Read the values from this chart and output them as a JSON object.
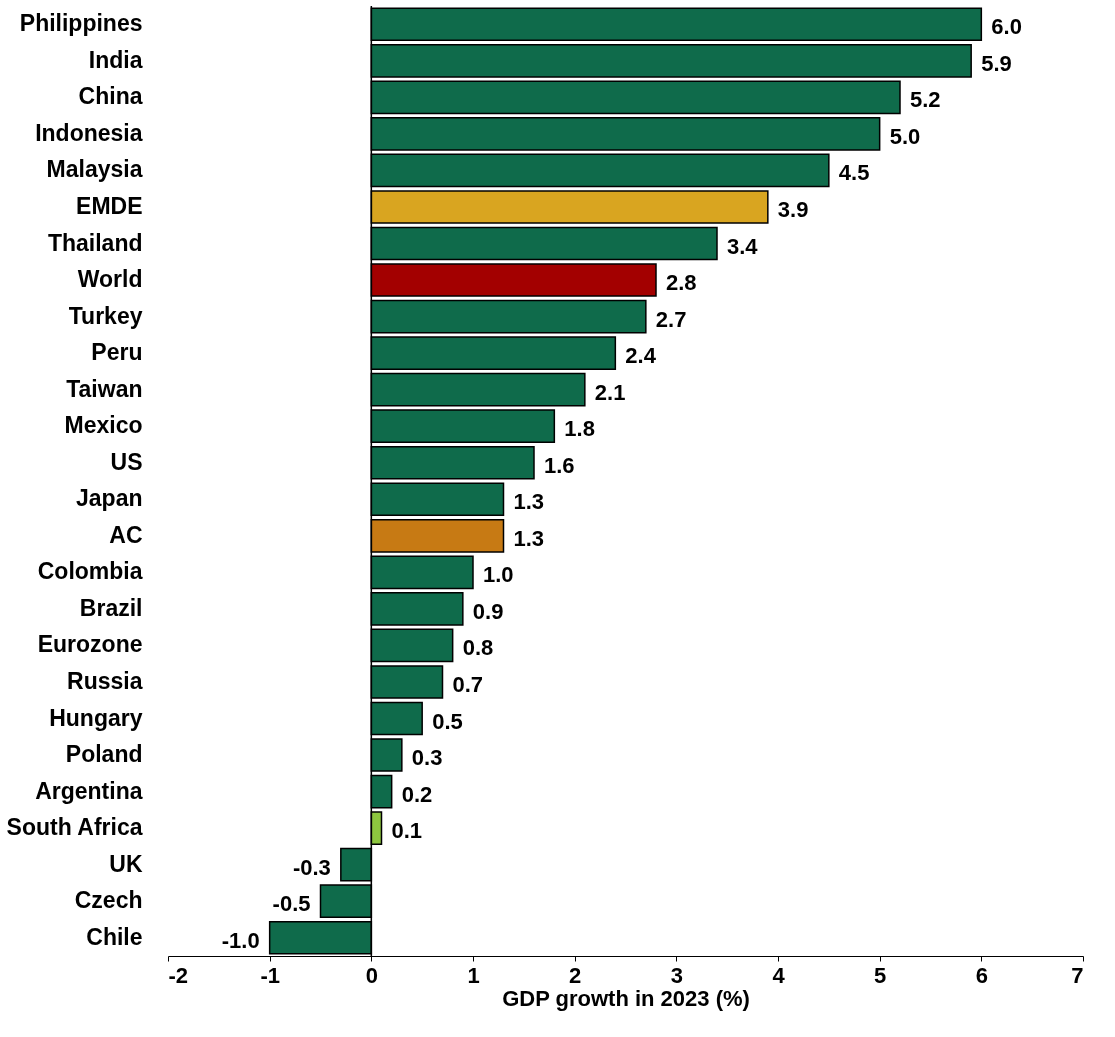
{
  "chart_data": {
    "type": "bar",
    "orientation": "horizontal",
    "xlabel": "GDP growth in 2023 (%)",
    "categories": [
      "Philippines",
      "India",
      "China",
      "Indonesia",
      "Malaysia",
      "EMDE",
      "Thailand",
      "World",
      "Turkey",
      "Peru",
      "Taiwan",
      "Mexico",
      "US",
      "Japan",
      "AC",
      "Colombia",
      "Brazil",
      "Eurozone",
      "Russia",
      "Hungary",
      "Poland",
      "Argentina",
      "South Africa",
      "UK",
      "Czech",
      "Chile"
    ],
    "values": [
      6.0,
      5.9,
      5.2,
      5.0,
      4.5,
      3.9,
      3.4,
      2.8,
      2.7,
      2.4,
      2.1,
      1.8,
      1.6,
      1.3,
      1.3,
      1.0,
      0.9,
      0.8,
      0.7,
      0.5,
      0.3,
      0.2,
      0.1,
      -0.3,
      -0.5,
      -1.0
    ],
    "value_labels": [
      "6.0",
      "5.9",
      "5.2",
      "5.0",
      "4.5",
      "3.9",
      "3.4",
      "2.8",
      "2.7",
      "2.4",
      "2.1",
      "1.8",
      "1.6",
      "1.3",
      "1.3",
      "1.0",
      "0.9",
      "0.8",
      "0.7",
      "0.5",
      "0.3",
      "0.2",
      "0.1",
      "-0.3",
      "-0.5",
      "-1.0"
    ],
    "colors": [
      "#0f6b4b",
      "#0f6b4b",
      "#0f6b4b",
      "#0f6b4b",
      "#0f6b4b",
      "#d9a520",
      "#0f6b4b",
      "#a30000",
      "#0f6b4b",
      "#0f6b4b",
      "#0f6b4b",
      "#0f6b4b",
      "#0f6b4b",
      "#0f6b4b",
      "#c77a14",
      "#0f6b4b",
      "#0f6b4b",
      "#0f6b4b",
      "#0f6b4b",
      "#0f6b4b",
      "#0f6b4b",
      "#0f6b4b",
      "#8dc63f",
      "#0f6b4b",
      "#0f6b4b",
      "#0f6b4b"
    ],
    "xlim": [
      -2,
      7
    ],
    "xticks": [
      -2,
      -1,
      0,
      1,
      2,
      3,
      4,
      5,
      6,
      7
    ],
    "ref_lines": [
      {
        "axis": "x",
        "value": 0,
        "color": "#000000"
      }
    ],
    "grid": false
  }
}
